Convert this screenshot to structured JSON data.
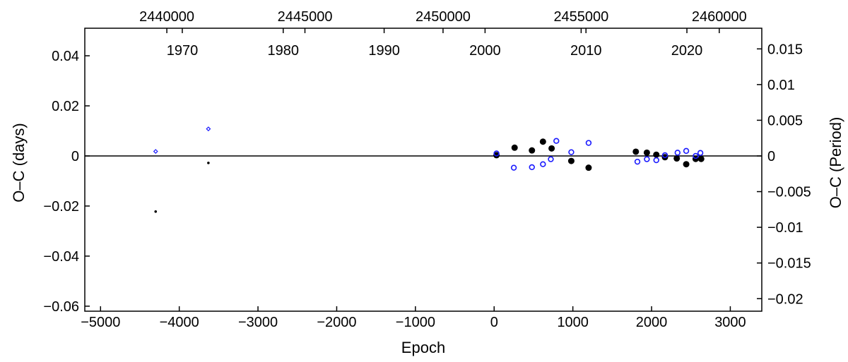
{
  "chart_data": {
    "type": "scatter",
    "xlabel": "Epoch",
    "ylabel_left": "O–C (days)",
    "ylabel_right": "O–C (Period)",
    "xlim": [
      -5200,
      3400
    ],
    "ylim": [
      -0.062,
      0.051
    ],
    "grid": false,
    "x_ticks": [
      {
        "value": -5000,
        "label": "−5000"
      },
      {
        "value": -4000,
        "label": "−4000"
      },
      {
        "value": -3000,
        "label": "−3000"
      },
      {
        "value": -2000,
        "label": "−2000"
      },
      {
        "value": -1000,
        "label": "−1000"
      },
      {
        "value": 0,
        "label": "0"
      },
      {
        "value": 1000,
        "label": "1000"
      },
      {
        "value": 2000,
        "label": "2000"
      },
      {
        "value": 3000,
        "label": "3000"
      }
    ],
    "y_ticks_left": [
      {
        "value": 0.04,
        "label": "0.04"
      },
      {
        "value": 0.02,
        "label": "0.02"
      },
      {
        "value": 0,
        "label": "0"
      },
      {
        "value": -0.02,
        "label": "−0.02"
      },
      {
        "value": -0.04,
        "label": "−0.04"
      },
      {
        "value": -0.06,
        "label": "−0.06"
      }
    ],
    "y_ticks_right": [
      {
        "value": 0.015,
        "label": "0.015"
      },
      {
        "value": 0.01,
        "label": "0.01"
      },
      {
        "value": 0.005,
        "label": "0.005"
      },
      {
        "value": 0,
        "label": "0"
      },
      {
        "value": -0.005,
        "label": "−0.005"
      },
      {
        "value": -0.01,
        "label": "−0.01"
      },
      {
        "value": -0.015,
        "label": "−0.015"
      },
      {
        "value": -0.02,
        "label": "−0.02"
      }
    ],
    "right_axis_period_days": 2.85,
    "top_axis_jd": [
      {
        "value": 2440000,
        "label": "2440000"
      },
      {
        "value": 2445000,
        "label": "2445000"
      },
      {
        "value": 2450000,
        "label": "2450000"
      },
      {
        "value": 2455000,
        "label": "2455000"
      },
      {
        "value": 2460000,
        "label": "2460000"
      }
    ],
    "top_axis_year": [
      {
        "value": 1970,
        "label": "1970"
      },
      {
        "value": 1980,
        "label": "1980"
      },
      {
        "value": 1990,
        "label": "1990"
      },
      {
        "value": 2000,
        "label": "2000"
      },
      {
        "value": 2010,
        "label": "2010"
      },
      {
        "value": 2020,
        "label": "2020"
      }
    ],
    "jd_linear": {
      "epoch0": 2451850,
      "period": 2.85
    },
    "year_linear": {
      "epoch0": 2000.9,
      "per_epoch": 0.0078
    },
    "series": [
      {
        "marker": "filled-circle-small",
        "color": "#000000",
        "points": [
          [
            -4300,
            -0.0222
          ],
          [
            -3630,
            -0.0028
          ]
        ]
      },
      {
        "marker": "open-diamond-small",
        "color": "#1a1aff",
        "points": [
          [
            -4300,
            0.0018
          ],
          [
            -3630,
            0.0108
          ]
        ]
      },
      {
        "marker": "filled-circle",
        "color": "#000000",
        "points": [
          [
            30,
            0.0003
          ],
          [
            260,
            0.0033
          ],
          [
            480,
            0.0022
          ],
          [
            620,
            0.0057
          ],
          [
            730,
            0.003
          ],
          [
            980,
            -0.002
          ],
          [
            1200,
            -0.0047
          ],
          [
            1800,
            0.0017
          ],
          [
            1940,
            0.0013
          ],
          [
            2060,
            0.0005
          ],
          [
            2170,
            -0.0005
          ],
          [
            2320,
            -0.001
          ],
          [
            2440,
            -0.0033
          ],
          [
            2560,
            -0.0012
          ],
          [
            2630,
            -0.0012
          ]
        ]
      },
      {
        "marker": "open-circle",
        "color": "#1a1aff",
        "points": [
          [
            30,
            0.001
          ],
          [
            250,
            -0.0047
          ],
          [
            480,
            -0.0045
          ],
          [
            620,
            -0.0033
          ],
          [
            720,
            -0.0013
          ],
          [
            790,
            0.006
          ],
          [
            980,
            0.0015
          ],
          [
            1200,
            0.0052
          ],
          [
            1820,
            -0.0023
          ],
          [
            1940,
            -0.0013
          ],
          [
            2060,
            -0.0017
          ],
          [
            2170,
            0.0003
          ],
          [
            2330,
            0.0013
          ],
          [
            2440,
            0.002
          ],
          [
            2560,
            0.0
          ],
          [
            2620,
            0.0012
          ]
        ]
      }
    ]
  }
}
